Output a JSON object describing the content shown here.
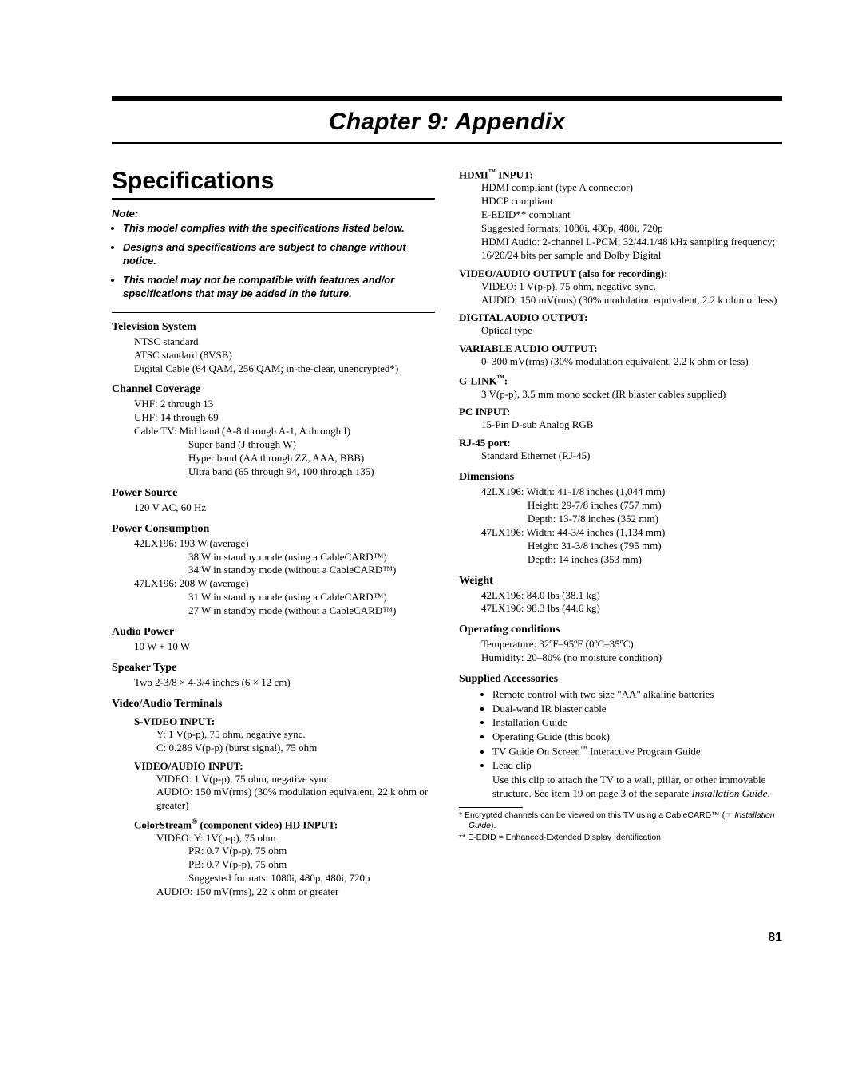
{
  "chapter": {
    "title": "Chapter 9: Appendix"
  },
  "section_title": "Specifications",
  "note": {
    "head": "Note:",
    "items": [
      "This model complies with the specifications listed below.",
      "Designs and specifications are subject to change without notice.",
      "This model may not be compatible with features and/or specifications that may be added in the future."
    ]
  },
  "tv_system": {
    "head": "Television System",
    "l1": "NTSC standard",
    "l2": "ATSC standard (8VSB)",
    "l3": "Digital Cable (64 QAM, 256 QAM; in-the-clear, unencrypted*)"
  },
  "channel": {
    "head": "Channel Coverage",
    "vhf": "VHF: 2 through 13",
    "uhf": "UHF: 14 through 69",
    "cable1": "Cable TV: Mid band (A-8 through A-1, A through I)",
    "cable2": "Super band (J through W)",
    "cable3": "Hyper band (AA through ZZ, AAA, BBB)",
    "cable4": "Ultra band (65 through 94, 100 through 135)"
  },
  "power_source": {
    "head": "Power Source",
    "val": "120 V AC, 60 Hz"
  },
  "power_cons": {
    "head": "Power Consumption",
    "m1a": "42LX196: 193 W (average)",
    "m1b": "38 W in standby mode (using a CableCARD™)",
    "m1c": "34 W in standby mode (without a CableCARD™)",
    "m2a": "47LX196: 208 W (average)",
    "m2b": "31 W in standby mode (using a CableCARD™)",
    "m2c": "27 W in standby mode (without a CableCARD™)"
  },
  "audio_power": {
    "head": "Audio Power",
    "val": "10 W + 10 W"
  },
  "speaker": {
    "head": "Speaker Type",
    "val": "Two 2-3/8 × 4-3/4 inches (6 × 12 cm)"
  },
  "vat": {
    "head": "Video/Audio Terminals",
    "svideo": {
      "head": "S-VIDEO INPUT:",
      "l1": "Y: 1 V(p-p), 75 ohm, negative sync.",
      "l2": "C: 0.286 V(p-p) (burst signal), 75 ohm"
    },
    "va_in": {
      "head": "VIDEO/AUDIO INPUT:",
      "l1": "VIDEO: 1 V(p-p), 75 ohm, negative sync.",
      "l2": "AUDIO: 150 mV(rms) (30% modulation equivalent, 22 k ohm or greater)"
    },
    "color": {
      "head_pre": "ColorStream",
      "head_post": " (component video) HD INPUT:",
      "l1": "VIDEO: Y: 1V(p-p), 75 ohm",
      "l2": "PR: 0.7 V(p-p), 75 ohm",
      "l3": "PB: 0.7 V(p-p), 75 ohm",
      "l4": "Suggested formats: 1080i, 480p, 480i, 720p",
      "l5": "AUDIO: 150 mV(rms), 22 k ohm or greater"
    },
    "hdmi": {
      "head_pre": "HDMI",
      "head_post": " INPUT:",
      "l1": "HDMI compliant (type A connector)",
      "l2": "HDCP compliant",
      "l3": "E-EDID** compliant",
      "l4": "Suggested formats: 1080i, 480p, 480i, 720p",
      "l5": "HDMI Audio: 2-channel L-PCM; 32/44.1/48 kHz sampling frequency; 16/20/24 bits per sample and Dolby Digital"
    },
    "va_out": {
      "head": "VIDEO/AUDIO OUTPUT (also for recording):",
      "l1": "VIDEO: 1 V(p-p), 75 ohm, negative sync.",
      "l2": "AUDIO: 150 mV(rms) (30% modulation equivalent, 2.2 k ohm or less)"
    },
    "digital_audio": {
      "head": "DIGITAL AUDIO OUTPUT:",
      "l1": "Optical type"
    },
    "var_audio": {
      "head": "VARIABLE AUDIO OUTPUT:",
      "l1": "0–300 mV(rms) (30% modulation equivalent, 2.2 k ohm or less)"
    },
    "glink": {
      "head_pre": "G-LINK",
      "head_post": ":",
      "l1": "3 V(p-p), 3.5 mm mono socket (IR blaster cables supplied)"
    },
    "pc": {
      "head": "PC INPUT:",
      "l1": "15-Pin D-sub Analog RGB"
    },
    "rj45": {
      "head": "RJ-45 port:",
      "l1": "Standard Ethernet (RJ-45)"
    }
  },
  "dimensions": {
    "head": "Dimensions",
    "m1a": "42LX196: Width: 41-1/8 inches (1,044 mm)",
    "m1b": "Height: 29-7/8 inches (757 mm)",
    "m1c": "Depth: 13-7/8 inches (352 mm)",
    "m2a": "47LX196: Width: 44-3/4 inches (1,134 mm)",
    "m2b": "Height: 31-3/8 inches (795 mm)",
    "m2c": "Depth: 14 inches (353 mm)"
  },
  "weight": {
    "head": "Weight",
    "l1": "42LX196: 84.0 lbs (38.1 kg)",
    "l2": "47LX196: 98.3 lbs (44.6 kg)"
  },
  "op": {
    "head": "Operating conditions",
    "l1": "Temperature: 32ºF–95ºF (0ºC–35ºC)",
    "l2": "Humidity: 20–80% (no moisture condition)"
  },
  "supplied": {
    "head": "Supplied Accessories",
    "i1": "Remote control with two size \"AA\" alkaline batteries",
    "i2": "Dual-wand IR blaster cable",
    "i3": "Installation Guide",
    "i4": "Operating Guide (this book)",
    "i5a": "TV Guide On Screen",
    "i5b": " Interactive Program Guide",
    "i6": "Lead clip",
    "i6b_a": "Use this clip to attach the TV to a wall, pillar, or other immovable structure. See item 19 on page 3 of the separate ",
    "i6b_b": "Installation Guide",
    "i6b_c": "."
  },
  "footnotes": {
    "f1a": "*  Encrypted channels can be viewed on this TV using a CableCARD™ (",
    "f1b": "☞ ",
    "f1c": "Installation Guide",
    "f1d": ").",
    "f2": "** E-EDID = Enhanced-Extended Display Identification"
  },
  "page_number": "81"
}
